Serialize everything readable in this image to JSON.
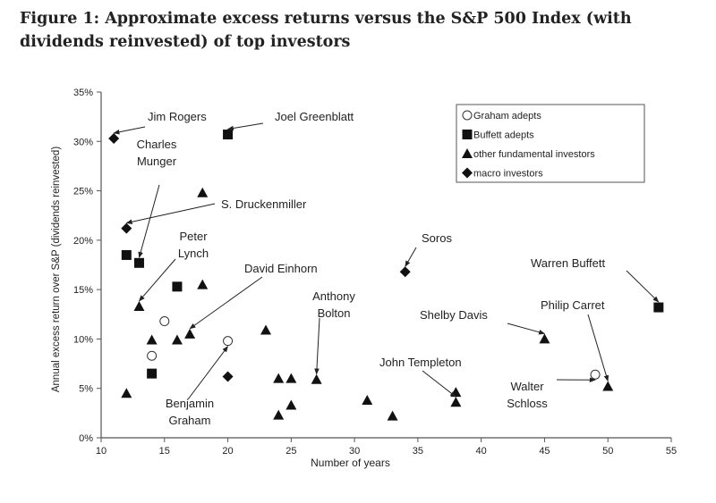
{
  "chart_data": {
    "type": "scatter",
    "title": "Figure 1: Approximate excess returns versus the S&P 500 Index (with dividends reinvested) of top investors",
    "xlabel": "Number of years",
    "ylabel": "Annual excess return over S&P (dividends reinvested)",
    "xlim": [
      10,
      55
    ],
    "ylim": [
      0,
      35
    ],
    "xticks": [
      "10",
      "15",
      "20",
      "25",
      "30",
      "35",
      "40",
      "45",
      "50",
      "55"
    ],
    "yticks": [
      "0%",
      "5%",
      "10%",
      "15%",
      "20%",
      "25%",
      "30%",
      "35%"
    ],
    "grid": false,
    "legend_placement": "top-right",
    "series": [
      {
        "name": "Graham adepts",
        "marker": "open-circle",
        "points": [
          [
            15,
            11.8
          ],
          [
            14,
            8.3
          ],
          [
            20,
            9.8
          ],
          [
            49,
            6.4
          ]
        ]
      },
      {
        "name": "Buffett adepts",
        "marker": "square",
        "points": [
          [
            20,
            30.7
          ],
          [
            12,
            18.5
          ],
          [
            13,
            17.7
          ],
          [
            16,
            15.3
          ],
          [
            14,
            6.5
          ],
          [
            54,
            13.2
          ]
        ]
      },
      {
        "name": "other fundamental investors",
        "marker": "triangle",
        "points": [
          [
            18,
            24.8
          ],
          [
            18,
            15.5
          ],
          [
            13,
            13.3
          ],
          [
            14,
            9.9
          ],
          [
            16,
            9.9
          ],
          [
            17,
            10.5
          ],
          [
            12,
            4.5
          ],
          [
            23,
            10.9
          ],
          [
            24,
            6.0
          ],
          [
            25,
            6.0
          ],
          [
            27,
            5.9
          ],
          [
            24,
            2.3
          ],
          [
            25,
            3.3
          ],
          [
            31,
            3.8
          ],
          [
            33,
            2.2
          ],
          [
            38,
            4.6
          ],
          [
            38,
            3.6
          ],
          [
            45,
            10.0
          ],
          [
            50,
            5.2
          ]
        ]
      },
      {
        "name": "macro investors",
        "marker": "diamond",
        "points": [
          [
            11,
            30.3
          ],
          [
            12,
            21.2
          ],
          [
            34,
            16.8
          ],
          [
            20,
            6.2
          ]
        ]
      }
    ],
    "annotations": [
      {
        "label": [
          "Jim Rogers"
        ],
        "x": 11,
        "y": 30.3
      },
      {
        "label": [
          "Joel Greenblatt"
        ],
        "x": 20,
        "y": 30.7
      },
      {
        "label": [
          "Charles",
          "Munger"
        ],
        "x": 13,
        "y": 17.7
      },
      {
        "label": [
          "S. Druckenmiller"
        ],
        "x": 12,
        "y": 21.2
      },
      {
        "label": [
          "Peter",
          "Lynch"
        ],
        "x": 13,
        "y": 13.3
      },
      {
        "label": [
          "David Einhorn"
        ],
        "x": 17,
        "y": 10.5
      },
      {
        "label": [
          "Benjamin",
          "Graham"
        ],
        "x": 20,
        "y": 9.8
      },
      {
        "label": [
          "Anthony",
          "Bolton"
        ],
        "x": 27,
        "y": 5.9
      },
      {
        "label": [
          "Soros"
        ],
        "x": 34,
        "y": 16.8
      },
      {
        "label": [
          "Warren Buffett"
        ],
        "x": 54,
        "y": 13.2
      },
      {
        "label": [
          "Shelby Davis"
        ],
        "x": 45,
        "y": 10.0
      },
      {
        "label": [
          "Philip Carret"
        ],
        "x": 50,
        "y": 5.2
      },
      {
        "label": [
          "John Templeton"
        ],
        "x": 38,
        "y": 3.6
      },
      {
        "label": [
          "Walter",
          "Schloss"
        ],
        "x": 49,
        "y": 6.4
      }
    ]
  }
}
